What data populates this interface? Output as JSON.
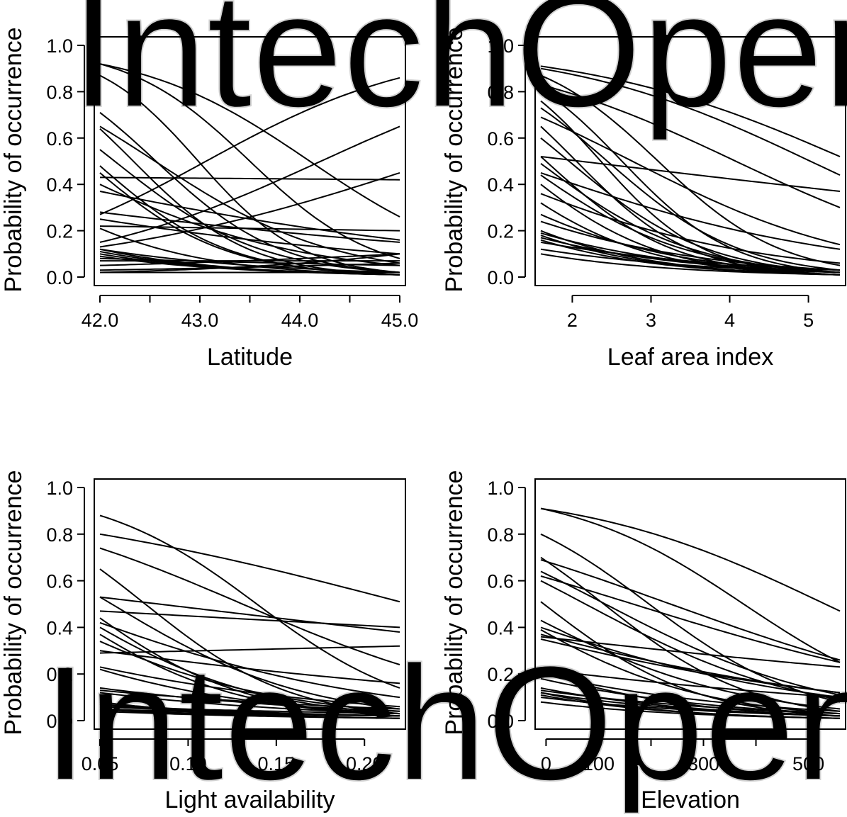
{
  "watermark": "IntechOpen",
  "chart_data": [
    {
      "type": "line",
      "xlabel": "Latitude",
      "ylabel": "Probability of occurrence",
      "xlim": [
        42.0,
        45.0
      ],
      "ylim": [
        0,
        1
      ],
      "xticks": [
        42.0,
        42.5,
        43.0,
        43.5,
        44.0,
        44.5,
        45.0
      ],
      "xtick_labels": [
        "42.0",
        "",
        "43.0",
        "",
        "44.0",
        "",
        "45.0"
      ],
      "yticks": [
        0,
        0.2,
        0.4,
        0.6,
        0.8,
        1.0
      ],
      "ytick_labels": [
        "0.0",
        "0.2",
        "0.4",
        "0.6",
        "0.8",
        "1.0"
      ],
      "series": [
        {
          "start": 0.92,
          "end": 0.08
        },
        {
          "start": 0.92,
          "end": 0.26
        },
        {
          "start": 0.87,
          "end": 0.02
        },
        {
          "start": 0.71,
          "end": 0.02
        },
        {
          "start": 0.65,
          "end": 0.06
        },
        {
          "start": 0.64,
          "end": 0.01
        },
        {
          "start": 0.55,
          "end": 0.02
        },
        {
          "start": 0.48,
          "end": 0.01
        },
        {
          "start": 0.45,
          "end": 0.01
        },
        {
          "start": 0.43,
          "end": 0.42
        },
        {
          "start": 0.4,
          "end": 0.05
        },
        {
          "start": 0.37,
          "end": 0.16
        },
        {
          "start": 0.28,
          "end": 0.15
        },
        {
          "start": 0.27,
          "end": 0.86
        },
        {
          "start": 0.25,
          "end": 0.1
        },
        {
          "start": 0.22,
          "end": 0.2
        },
        {
          "start": 0.21,
          "end": 0.01
        },
        {
          "start": 0.15,
          "end": 0.65
        },
        {
          "start": 0.13,
          "end": 0.45
        },
        {
          "start": 0.12,
          "end": 0.01
        },
        {
          "start": 0.12,
          "end": 0.02
        },
        {
          "start": 0.11,
          "end": 0.01
        },
        {
          "start": 0.1,
          "end": 0.01
        },
        {
          "start": 0.09,
          "end": 0.01
        },
        {
          "start": 0.08,
          "end": 0.05
        },
        {
          "start": 0.07,
          "end": 0.07
        },
        {
          "start": 0.05,
          "end": 0.1
        },
        {
          "start": 0.03,
          "end": 0.06
        },
        {
          "start": 0.02,
          "end": 0.02
        },
        {
          "start": 0.02,
          "end": 0.1
        }
      ]
    },
    {
      "type": "line",
      "xlabel": "Leaf area index",
      "ylabel": "Probability of occurrence",
      "xlim": [
        1.6,
        5.4
      ],
      "ylim": [
        0,
        1
      ],
      "xticks": [
        2,
        3,
        4,
        5
      ],
      "xtick_labels": [
        "2",
        "3",
        "4",
        "5"
      ],
      "yticks": [
        0,
        0.2,
        0.4,
        0.6,
        0.8,
        1.0
      ],
      "ytick_labels": [
        "0.0",
        "0.2",
        "0.4",
        "0.6",
        "0.8",
        "1.0"
      ],
      "series": [
        {
          "start": 0.91,
          "end": 0.52
        },
        {
          "start": 0.9,
          "end": 0.44
        },
        {
          "start": 0.87,
          "end": 0.05
        },
        {
          "start": 0.83,
          "end": 0.3
        },
        {
          "start": 0.81,
          "end": 0.02
        },
        {
          "start": 0.76,
          "end": 0.01
        },
        {
          "start": 0.73,
          "end": 0.03
        },
        {
          "start": 0.69,
          "end": 0.14
        },
        {
          "start": 0.65,
          "end": 0.01
        },
        {
          "start": 0.6,
          "end": 0.02
        },
        {
          "start": 0.52,
          "end": 0.01
        },
        {
          "start": 0.52,
          "end": 0.37
        },
        {
          "start": 0.49,
          "end": 0.02
        },
        {
          "start": 0.45,
          "end": 0.12
        },
        {
          "start": 0.44,
          "end": 0.02
        },
        {
          "start": 0.4,
          "end": 0.01
        },
        {
          "start": 0.36,
          "end": 0.06
        },
        {
          "start": 0.32,
          "end": 0.01
        },
        {
          "start": 0.27,
          "end": 0.02
        },
        {
          "start": 0.24,
          "end": 0.03
        },
        {
          "start": 0.2,
          "end": 0.01
        },
        {
          "start": 0.19,
          "end": 0.02
        },
        {
          "start": 0.18,
          "end": 0.01
        },
        {
          "start": 0.17,
          "end": 0.02
        },
        {
          "start": 0.16,
          "end": 0.01
        },
        {
          "start": 0.15,
          "end": 0.03
        },
        {
          "start": 0.12,
          "end": 0.02
        },
        {
          "start": 0.1,
          "end": 0.01
        }
      ]
    },
    {
      "type": "line",
      "xlabel": "Light availability",
      "ylabel": "Probability of occurrence",
      "xlim": [
        0.05,
        0.22
      ],
      "ylim": [
        0,
        1
      ],
      "xticks": [
        0.05,
        0.1,
        0.15,
        0.2
      ],
      "xtick_labels": [
        "0.05",
        "0.10",
        "0.15",
        "0.20"
      ],
      "yticks": [
        0,
        0.2,
        0.4,
        0.6,
        0.8,
        1.0
      ],
      "ytick_labels": [
        "0.0",
        "0.2",
        "0.4",
        "0.6",
        "0.8",
        "1.0"
      ],
      "series": [
        {
          "start": 0.88,
          "end": 0.14
        },
        {
          "start": 0.8,
          "end": 0.51
        },
        {
          "start": 0.74,
          "end": 0.24
        },
        {
          "start": 0.65,
          "end": 0.03
        },
        {
          "start": 0.53,
          "end": 0.38
        },
        {
          "start": 0.53,
          "end": 0.05
        },
        {
          "start": 0.47,
          "end": 0.4
        },
        {
          "start": 0.44,
          "end": 0.02
        },
        {
          "start": 0.42,
          "end": 0.1
        },
        {
          "start": 0.4,
          "end": 0.03
        },
        {
          "start": 0.37,
          "end": 0.02
        },
        {
          "start": 0.34,
          "end": 0.04
        },
        {
          "start": 0.3,
          "end": 0.16
        },
        {
          "start": 0.29,
          "end": 0.32
        },
        {
          "start": 0.23,
          "end": 0.06
        },
        {
          "start": 0.22,
          "end": 0.03
        },
        {
          "start": 0.14,
          "end": 0.04
        },
        {
          "start": 0.13,
          "end": 0.05
        },
        {
          "start": 0.12,
          "end": 0.03
        },
        {
          "start": 0.08,
          "end": 0.01
        },
        {
          "start": 0.07,
          "end": 0.02
        },
        {
          "start": 0.07,
          "end": 0.01
        },
        {
          "start": 0.06,
          "end": 0.03
        },
        {
          "start": 0.06,
          "end": 0.02
        },
        {
          "start": 0.05,
          "end": 0.01
        },
        {
          "start": 0.05,
          "end": 0.02
        },
        {
          "start": 0.04,
          "end": 0.01
        },
        {
          "start": 0.04,
          "end": 0.02
        }
      ]
    },
    {
      "type": "line",
      "xlabel": "Elevation",
      "ylabel": "Probability of occurrence",
      "xlim": [
        -10,
        560
      ],
      "ylim": [
        0,
        1
      ],
      "xticks": [
        0,
        100,
        200,
        300,
        400,
        500
      ],
      "xtick_labels": [
        "0",
        "100",
        "",
        "300",
        "",
        "500"
      ],
      "yticks": [
        0,
        0.2,
        0.4,
        0.6,
        0.8,
        1.0
      ],
      "ytick_labels": [
        "0.0",
        "0.2",
        "0.4",
        "0.6",
        "0.8",
        "1.0"
      ],
      "series": [
        {
          "start": 0.91,
          "end": 0.47
        },
        {
          "start": 0.91,
          "end": 0.25
        },
        {
          "start": 0.8,
          "end": 0.08
        },
        {
          "start": 0.7,
          "end": 0.04
        },
        {
          "start": 0.69,
          "end": 0.26
        },
        {
          "start": 0.64,
          "end": 0.11
        },
        {
          "start": 0.62,
          "end": 0.25
        },
        {
          "start": 0.6,
          "end": 0.09
        },
        {
          "start": 0.51,
          "end": 0.02
        },
        {
          "start": 0.43,
          "end": 0.05
        },
        {
          "start": 0.4,
          "end": 0.1
        },
        {
          "start": 0.39,
          "end": 0.03
        },
        {
          "start": 0.37,
          "end": 0.12
        },
        {
          "start": 0.36,
          "end": 0.23
        },
        {
          "start": 0.35,
          "end": 0.12
        },
        {
          "start": 0.22,
          "end": 0.1
        },
        {
          "start": 0.21,
          "end": 0.02
        },
        {
          "start": 0.2,
          "end": 0.04
        },
        {
          "start": 0.18,
          "end": 0.03
        },
        {
          "start": 0.14,
          "end": 0.02
        },
        {
          "start": 0.13,
          "end": 0.03
        },
        {
          "start": 0.12,
          "end": 0.01
        },
        {
          "start": 0.12,
          "end": 0.02
        },
        {
          "start": 0.11,
          "end": 0.01
        },
        {
          "start": 0.1,
          "end": 0.02
        },
        {
          "start": 0.08,
          "end": 0.01
        }
      ]
    }
  ]
}
